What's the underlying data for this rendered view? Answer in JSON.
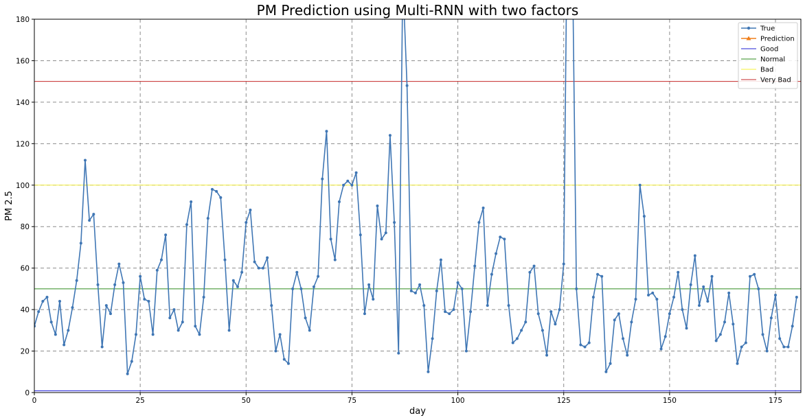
{
  "chart_data": {
    "type": "line",
    "title": "PM Prediction using Multi-RNN with two factors",
    "xlabel": "day",
    "ylabel": "PM 2.5",
    "xlim": [
      0,
      181
    ],
    "ylim": [
      0,
      180
    ],
    "xticks": [
      0,
      25,
      50,
      75,
      100,
      125,
      150,
      175
    ],
    "yticks": [
      0,
      20,
      40,
      60,
      80,
      100,
      120,
      140,
      160,
      180
    ],
    "grid": true,
    "legend_position": "top-right",
    "series": [
      {
        "name": "True",
        "color": "#3f76b4",
        "marker": "dot",
        "values": [
          32,
          39,
          44,
          46,
          34,
          28,
          44,
          23,
          30,
          41,
          54,
          72,
          112,
          83,
          86,
          52,
          22,
          42,
          38,
          52,
          62,
          53,
          9,
          15,
          28,
          56,
          45,
          44,
          28,
          59,
          64,
          76,
          36,
          40,
          30,
          34,
          81,
          92,
          32,
          28,
          46,
          84,
          98,
          97,
          94,
          64,
          30,
          54,
          51,
          58,
          82,
          88,
          63,
          60,
          60,
          65,
          42,
          20,
          28,
          16,
          14,
          50,
          58,
          50,
          36,
          30,
          51,
          56,
          103,
          126,
          74,
          64,
          92,
          100,
          102,
          100,
          106,
          76,
          38,
          52,
          45,
          90,
          74,
          77,
          124,
          82,
          19,
          200,
          148,
          49,
          48,
          52,
          42,
          10,
          26,
          49,
          64,
          39,
          38,
          40,
          53,
          50,
          20,
          39,
          61,
          82,
          89,
          42,
          57,
          67,
          75,
          74,
          42,
          24,
          26,
          30,
          34,
          58,
          61,
          38,
          30,
          18,
          39,
          33,
          40,
          62,
          260,
          220,
          50,
          23,
          22,
          24,
          46,
          57,
          56,
          10,
          14,
          35,
          38,
          26,
          18,
          34,
          45,
          100,
          85,
          47,
          48,
          45,
          21,
          27,
          38,
          46,
          58,
          40,
          31,
          52,
          66,
          42,
          51,
          44,
          56,
          25,
          28,
          34,
          48,
          33,
          14,
          22,
          24,
          56,
          57,
          50,
          28,
          20,
          36,
          47,
          26,
          22,
          22,
          32,
          46
        ]
      },
      {
        "name": "Prediction",
        "color": "#f07f1a",
        "marker": "triangle",
        "values": []
      }
    ],
    "reference_lines": [
      {
        "name": "Good",
        "y": 0,
        "color": "#1f1fd6"
      },
      {
        "name": "Normal",
        "y": 50,
        "color": "#2e8b1e"
      },
      {
        "name": "Bad",
        "y": 100,
        "color": "#f5f03a"
      },
      {
        "name": "Very Bad",
        "y": 150,
        "color": "#c62828"
      }
    ]
  }
}
